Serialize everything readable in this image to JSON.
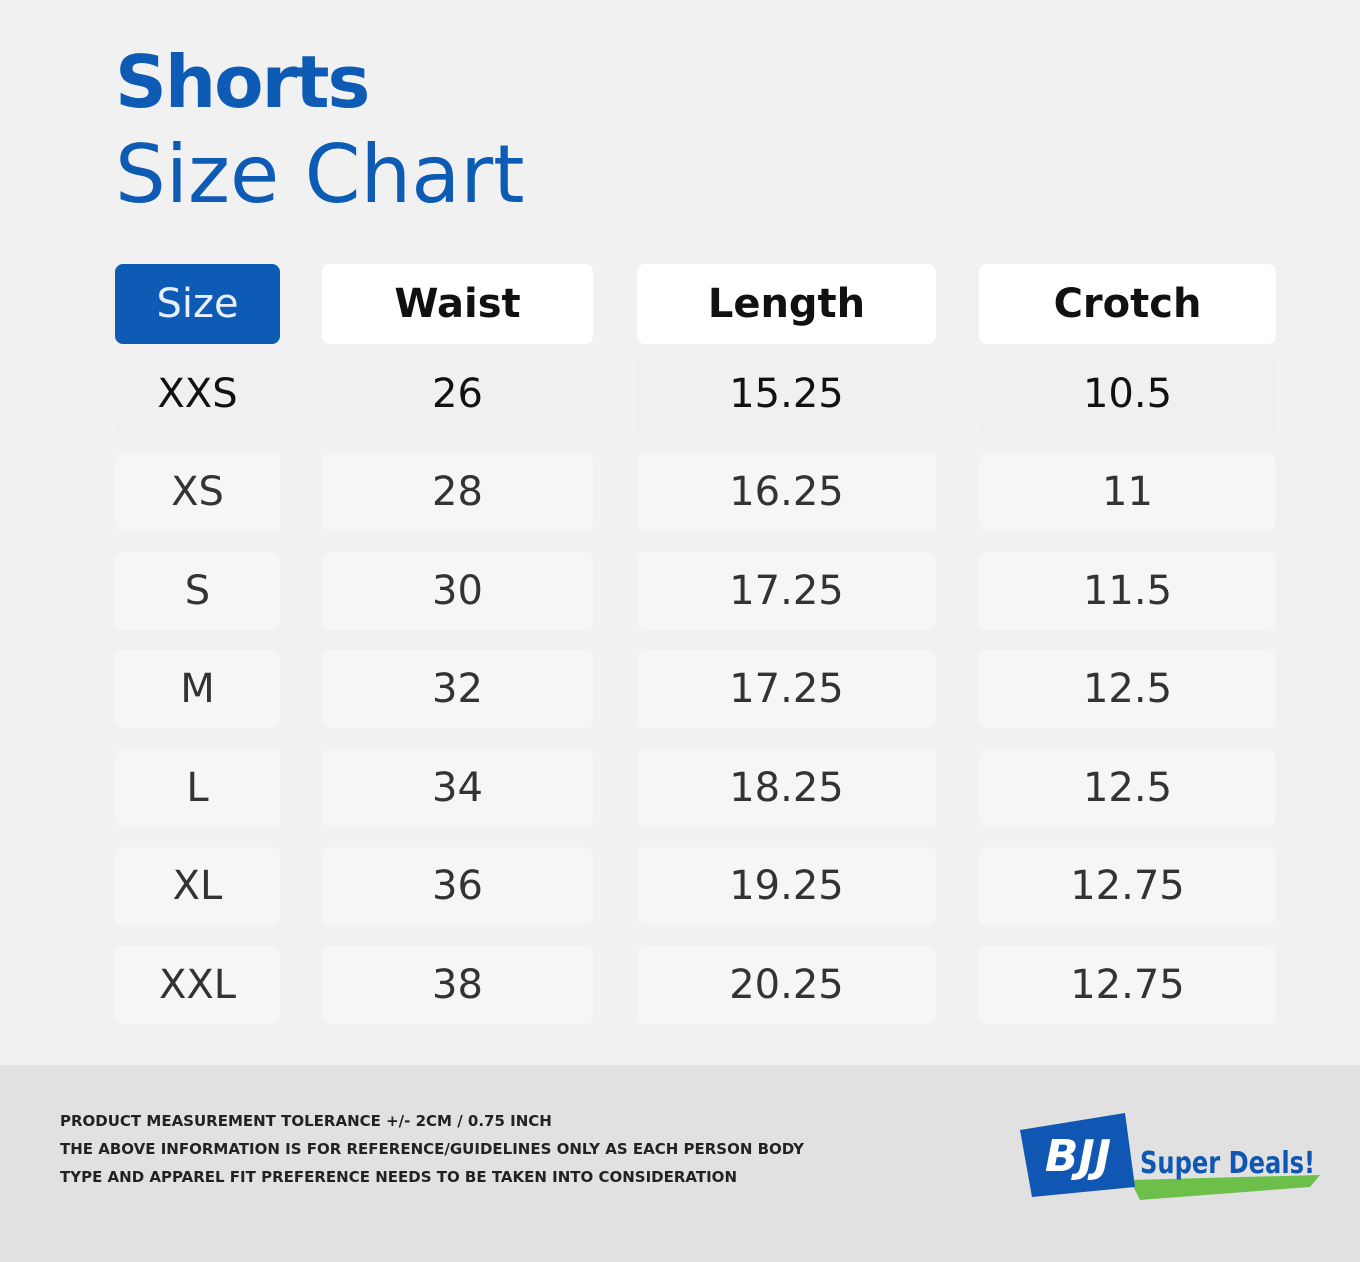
{
  "header": {
    "title": "Shorts",
    "subtitle": "Size Chart"
  },
  "table": {
    "columns": [
      "Size",
      "Waist",
      "Length",
      "Crotch"
    ],
    "rows": [
      [
        "XXS",
        26,
        15.25,
        10.5
      ],
      [
        "XS",
        28,
        16.25,
        11
      ],
      [
        "S",
        30,
        17.25,
        11.5
      ],
      [
        "M",
        32,
        17.25,
        12.5
      ],
      [
        "L",
        34,
        18.25,
        12.5
      ],
      [
        "XL",
        36,
        19.25,
        12.75
      ],
      [
        "XXL",
        38,
        20.25,
        12.75
      ]
    ]
  },
  "footer": {
    "notes": [
      "PRODUCT MEASUREMENT TOLERANCE +/- 2CM / 0.75 INCH",
      "THE ABOVE INFORMATION IS FOR REFERENCE/GUIDELINES ONLY AS EACH PERSON BODY",
      "TYPE AND APPAREL FIT PREFERENCE NEEDS TO BE TAKEN INTO CONSIDERATION"
    ],
    "logo": {
      "mark": "BJJ",
      "text": "Super Deals!"
    }
  }
}
